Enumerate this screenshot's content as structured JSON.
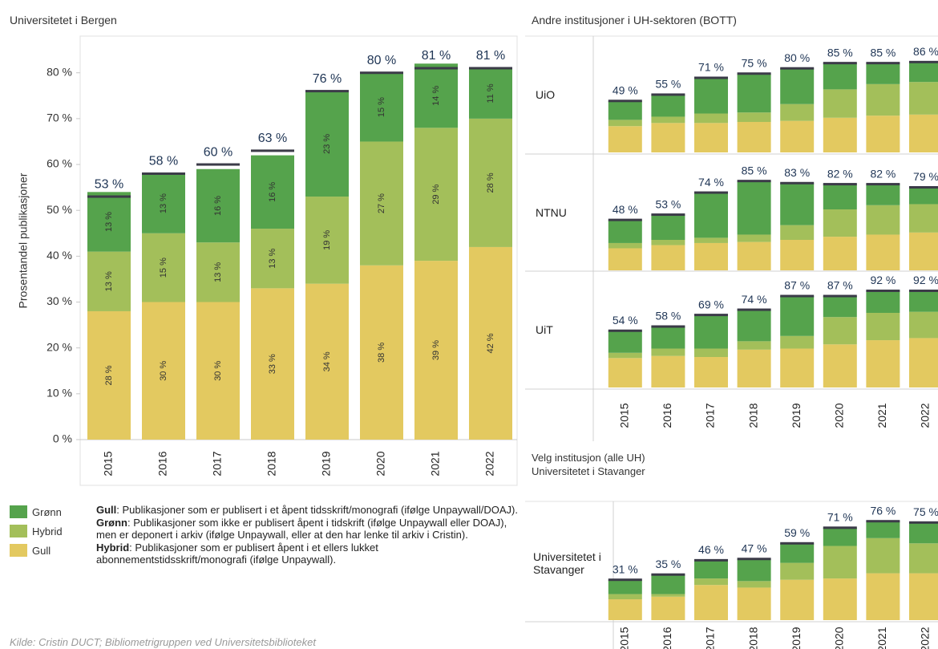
{
  "chart_data": [
    {
      "type": "bar",
      "stacked": true,
      "title": "Universitetet i Bergen",
      "ylabel": "Prosentandel publikasjoner",
      "categories": [
        "2015",
        "2016",
        "2017",
        "2018",
        "2019",
        "2020",
        "2021",
        "2022"
      ],
      "series": [
        {
          "name": "Gull",
          "color": "#e3c960",
          "values": [
            28,
            30,
            30,
            33,
            34,
            38,
            39,
            42
          ],
          "value_labels": [
            "28 %",
            "30 %",
            "30 %",
            "33 %",
            "34 %",
            "38 %",
            "39 %",
            "42 %"
          ]
        },
        {
          "name": "Hybrid",
          "color": "#a3bf5a",
          "values": [
            13,
            15,
            13,
            13,
            19,
            27,
            29,
            28
          ],
          "value_labels": [
            "13 %",
            "15 %",
            "13 %",
            "13 %",
            "19 %",
            "27 %",
            "29 %",
            "28 %"
          ]
        },
        {
          "name": "Grønn",
          "color": "#55a34c",
          "values": [
            13,
            13,
            16,
            16,
            23,
            15,
            14,
            11
          ],
          "value_labels": [
            "13 %",
            "13 %",
            "16 %",
            "16 %",
            "23 %",
            "15 %",
            "14 %",
            "11 %"
          ]
        }
      ],
      "totals": [
        53,
        58,
        60,
        63,
        76,
        80,
        81,
        81
      ],
      "total_labels": [
        "53 %",
        "58 %",
        "60 %",
        "63 %",
        "76 %",
        "80 %",
        "81 %",
        "81 %"
      ],
      "ylim": [
        0,
        88
      ],
      "yticks": [
        {
          "value": 0,
          "label": "0 %"
        },
        {
          "value": 10,
          "label": "10 %"
        },
        {
          "value": 20,
          "label": "20 %"
        },
        {
          "value": 30,
          "label": "30 %"
        },
        {
          "value": 40,
          "label": "40 %"
        },
        {
          "value": 50,
          "label": "50 %"
        },
        {
          "value": 60,
          "label": "60 %"
        },
        {
          "value": 70,
          "label": "70 %"
        },
        {
          "value": 80,
          "label": "80 %"
        }
      ]
    },
    {
      "type": "bar",
      "stacked": true,
      "title": "Andre institusjoner i UH-sektoren (BOTT)",
      "categories": [
        "2015",
        "2016",
        "2017",
        "2018",
        "2019",
        "2020",
        "2021",
        "2022"
      ],
      "ylim": [
        0,
        100
      ],
      "panels": [
        {
          "name": "UiO",
          "series": [
            {
              "name": "Gull",
              "color": "#e3c960",
              "values": [
                25,
                28,
                28,
                29,
                30,
                33,
                35,
                36
              ]
            },
            {
              "name": "Hybrid",
              "color": "#a3bf5a",
              "values": [
                6,
                6,
                9,
                9,
                16,
                27,
                30,
                31
              ]
            },
            {
              "name": "Grønn",
              "color": "#55a34c",
              "values": [
                18,
                21,
                34,
                37,
                34,
                25,
                20,
                19
              ]
            }
          ],
          "totals": [
            49,
            55,
            71,
            75,
            80,
            85,
            85,
            86
          ],
          "total_labels": [
            "49 %",
            "55 %",
            "71 %",
            "75 %",
            "80 %",
            "85 %",
            "85 %",
            "86 %"
          ]
        },
        {
          "name": "NTNU",
          "series": [
            {
              "name": "Gull",
              "color": "#e3c960",
              "values": [
                21,
                24,
                26,
                27,
                29,
                32,
                34,
                36
              ]
            },
            {
              "name": "Hybrid",
              "color": "#a3bf5a",
              "values": [
                5,
                5,
                5,
                7,
                14,
                26,
                28,
                27
              ]
            },
            {
              "name": "Grønn",
              "color": "#55a34c",
              "values": [
                22,
                24,
                43,
                51,
                40,
                24,
                20,
                16
              ]
            }
          ],
          "totals": [
            48,
            53,
            74,
            85,
            83,
            82,
            82,
            79
          ],
          "total_labels": [
            "48 %",
            "53 %",
            "74 %",
            "85 %",
            "83 %",
            "82 %",
            "82 %",
            "79 %"
          ]
        },
        {
          "name": "UiT",
          "series": [
            {
              "name": "Gull",
              "color": "#e3c960",
              "values": [
                28,
                30,
                29,
                36,
                37,
                41,
                45,
                47
              ]
            },
            {
              "name": "Hybrid",
              "color": "#a3bf5a",
              "values": [
                5,
                7,
                8,
                8,
                12,
                26,
                26,
                25
              ]
            },
            {
              "name": "Grønn",
              "color": "#55a34c",
              "values": [
                21,
                21,
                32,
                30,
                38,
                20,
                21,
                20
              ]
            }
          ],
          "totals": [
            54,
            58,
            69,
            74,
            87,
            87,
            92,
            92
          ],
          "total_labels": [
            "54 %",
            "58 %",
            "69 %",
            "74 %",
            "87 %",
            "87 %",
            "92 %",
            "92 %"
          ]
        }
      ]
    },
    {
      "type": "bar",
      "stacked": true,
      "categories": [
        "2015",
        "2016",
        "2017",
        "2018",
        "2019",
        "2020",
        "2021",
        "2022"
      ],
      "ylim": [
        0,
        90
      ],
      "panels": [
        {
          "name": "Universitetet i Stavanger",
          "series": [
            {
              "name": "Gull",
              "color": "#e3c960",
              "values": [
                16,
                18,
                27,
                25,
                31,
                32,
                36,
                36
              ]
            },
            {
              "name": "Hybrid",
              "color": "#a3bf5a",
              "values": [
                4,
                2,
                5,
                5,
                13,
                25,
                27,
                23
              ]
            },
            {
              "name": "Grønn",
              "color": "#55a34c",
              "values": [
                11,
                15,
                14,
                17,
                15,
                14,
                13,
                16
              ]
            }
          ],
          "totals": [
            31,
            35,
            46,
            47,
            59,
            71,
            76,
            75
          ],
          "total_labels": [
            "31 %",
            "35 %",
            "46 %",
            "47 %",
            "59 %",
            "71 %",
            "76 %",
            "75 %"
          ]
        }
      ]
    }
  ],
  "selector": {
    "label": "Velg institusjon (alle UH)",
    "value": "Universitetet i Stavanger"
  },
  "definitions": [
    {
      "term": "Gull",
      "text": ": Publikasjoner som er publisert i et åpent tidsskrift/monografi (ifølge Unpaywall/DOAJ)."
    },
    {
      "term": "Grønn",
      "text": ": Publikasjoner som ikke er publisert åpent i tidskrift (ifølge Unpaywall eller DOAJ), men er deponert i arkiv (ifølge Unpaywall, eller at den har lenke til arkiv i Cristin)."
    },
    {
      "term": "Hybrid",
      "text": ": Publikasjoner som er publisert åpent i et ellers lukket abonnementstidsskrift/monografi (ifølge Unpaywall)."
    }
  ],
  "source": "Kilde: Cristin DUCT; Bibliometrigruppen ved Universitetsbiblioteket"
}
